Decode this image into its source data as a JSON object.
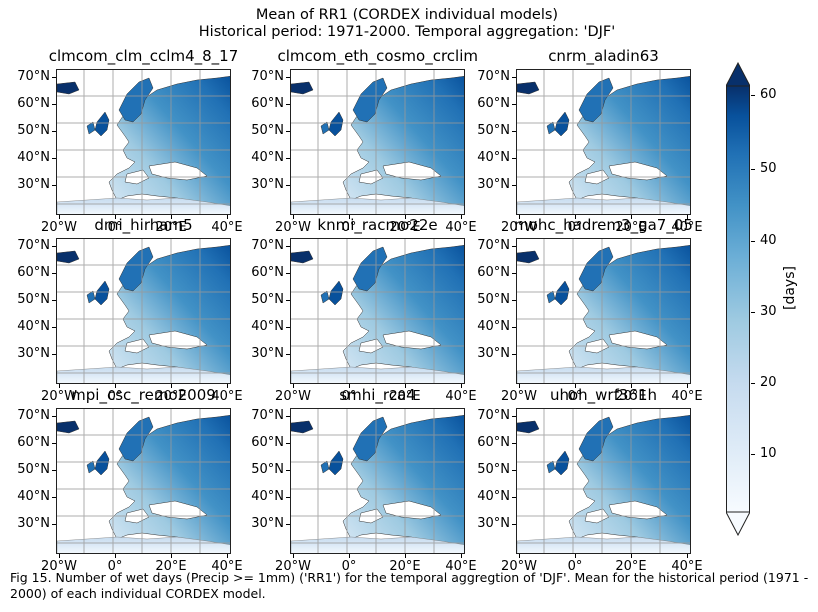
{
  "title_line1": "Mean of RR1 (CORDEX individual models)",
  "title_line2": "Historical period: 1971-2000. Temporal aggregation: 'DJF'",
  "panels": [
    {
      "name": "clmcom_clm_cclm4_8_17"
    },
    {
      "name": "clmcom_eth_cosmo_crclim"
    },
    {
      "name": "cnrm_aladin63"
    },
    {
      "name": "dmi_hirham5"
    },
    {
      "name": "knmi_racmo22e"
    },
    {
      "name": "mohc_hadrem3_ga7_05"
    },
    {
      "name": "mpi_csc_remo2009"
    },
    {
      "name": "smhi_rca4"
    },
    {
      "name": "uhoh_wrf361h"
    }
  ],
  "axes": {
    "lat_ticks": [
      "70°N",
      "60°N",
      "50°N",
      "40°N",
      "30°N"
    ],
    "lon_ticks": [
      "20°W",
      "0°",
      "20°E",
      "40°E"
    ]
  },
  "colorbar": {
    "label": "[days]",
    "ticks": [
      "60",
      "50",
      "40",
      "30",
      "20",
      "10"
    ],
    "colormap": "Blues",
    "extend": "both"
  },
  "colors": {
    "dark": "#08306b",
    "mid": "#4292c6",
    "light": "#c6dbef",
    "lightest": "#f7fbff"
  },
  "caption": "Fig 15. Number of wet days (Precip >= 1mm) ('RR1') for the temporal aggregtion of 'DJF'. Mean for the historical period (1971 - 2000) of each individual CORDEX model."
}
